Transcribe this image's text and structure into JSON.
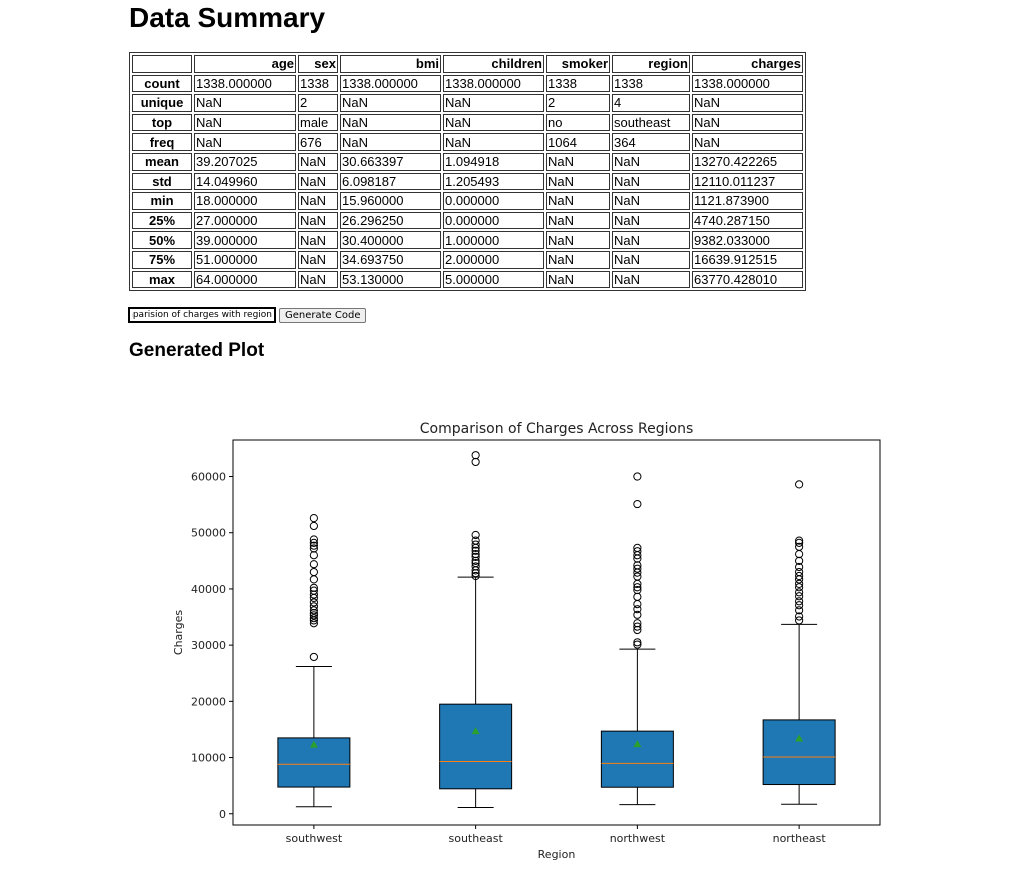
{
  "page": {
    "title": "Data Summary",
    "plot_heading": "Generated Plot"
  },
  "table": {
    "columns": [
      "",
      "age",
      "sex",
      "bmi",
      "children",
      "smoker",
      "region",
      "charges"
    ],
    "rows": [
      {
        "label": "count",
        "cells": [
          "1338.000000",
          "1338",
          "1338.000000",
          "1338.000000",
          "1338",
          "1338",
          "1338.000000"
        ]
      },
      {
        "label": "unique",
        "cells": [
          "NaN",
          "2",
          "NaN",
          "NaN",
          "2",
          "4",
          "NaN"
        ]
      },
      {
        "label": "top",
        "cells": [
          "NaN",
          "male",
          "NaN",
          "NaN",
          "no",
          "southeast",
          "NaN"
        ]
      },
      {
        "label": "freq",
        "cells": [
          "NaN",
          "676",
          "NaN",
          "NaN",
          "1064",
          "364",
          "NaN"
        ]
      },
      {
        "label": "mean",
        "cells": [
          "39.207025",
          "NaN",
          "30.663397",
          "1.094918",
          "NaN",
          "NaN",
          "13270.422265"
        ]
      },
      {
        "label": "std",
        "cells": [
          "14.049960",
          "NaN",
          "6.098187",
          "1.205493",
          "NaN",
          "NaN",
          "12110.011237"
        ]
      },
      {
        "label": "min",
        "cells": [
          "18.000000",
          "NaN",
          "15.960000",
          "0.000000",
          "NaN",
          "NaN",
          "1121.873900"
        ]
      },
      {
        "label": "25%",
        "cells": [
          "27.000000",
          "NaN",
          "26.296250",
          "0.000000",
          "NaN",
          "NaN",
          "4740.287150"
        ]
      },
      {
        "label": "50%",
        "cells": [
          "39.000000",
          "NaN",
          "30.400000",
          "1.000000",
          "NaN",
          "NaN",
          "9382.033000"
        ]
      },
      {
        "label": "75%",
        "cells": [
          "51.000000",
          "NaN",
          "34.693750",
          "2.000000",
          "NaN",
          "NaN",
          "16639.912515"
        ]
      },
      {
        "label": "max",
        "cells": [
          "64.000000",
          "NaN",
          "53.130000",
          "5.000000",
          "NaN",
          "NaN",
          "63770.428010"
        ]
      }
    ]
  },
  "controls": {
    "query_value": "Comparision of charges with region",
    "generate_label": "Generate Code"
  },
  "chart_data": {
    "type": "box",
    "title": "Comparison of Charges Across Regions",
    "xlabel": "Region",
    "ylabel": "Charges",
    "ylim": [
      -2000,
      66500
    ],
    "yticks": [
      0,
      10000,
      20000,
      30000,
      40000,
      50000,
      60000
    ],
    "grid": false,
    "legend": "none",
    "colors": {
      "box_fill": "#1f77b4",
      "median": "#ff7f0e",
      "mean_marker": "#2ca02c",
      "outlier": "#000000"
    },
    "categories": [
      "southwest",
      "southeast",
      "northwest",
      "northeast"
    ],
    "boxes": [
      {
        "name": "southwest",
        "whislo": 1242,
        "q1": 4750,
        "med": 8800,
        "q3": 13500,
        "whishi": 26200,
        "mean": 12300,
        "fliers": [
          27900,
          33900,
          34400,
          34800,
          35300,
          35700,
          36200,
          36900,
          37600,
          38400,
          39000,
          39700,
          40200,
          41700,
          43000,
          44400,
          46000,
          47200,
          47700,
          48200,
          48800,
          51200,
          52600
        ]
      },
      {
        "name": "southeast",
        "whislo": 1122,
        "q1": 4440,
        "med": 9300,
        "q3": 19500,
        "whishi": 42100,
        "mean": 14700,
        "fliers": [
          42300,
          42800,
          43300,
          44000,
          44600,
          45000,
          45700,
          46200,
          46800,
          47300,
          47900,
          48600,
          49600,
          62600,
          63800
        ]
      },
      {
        "name": "northwest",
        "whislo": 1621,
        "q1": 4720,
        "med": 8970,
        "q3": 14700,
        "whishi": 29300,
        "mean": 12400,
        "fliers": [
          30100,
          30500,
          32700,
          33300,
          33900,
          35400,
          36400,
          37300,
          38600,
          39800,
          40300,
          40900,
          42200,
          42900,
          43600,
          44200,
          45400,
          46000,
          46700,
          47300,
          55100,
          60000
        ]
      },
      {
        "name": "northeast",
        "whislo": 1695,
        "q1": 5200,
        "med": 10100,
        "q3": 16700,
        "whishi": 33700,
        "mean": 13400,
        "fliers": [
          34400,
          35100,
          36200,
          37100,
          37800,
          38700,
          39400,
          40300,
          40900,
          41700,
          42300,
          43000,
          43900,
          45000,
          46200,
          47500,
          48200,
          48600,
          58600
        ]
      }
    ]
  }
}
